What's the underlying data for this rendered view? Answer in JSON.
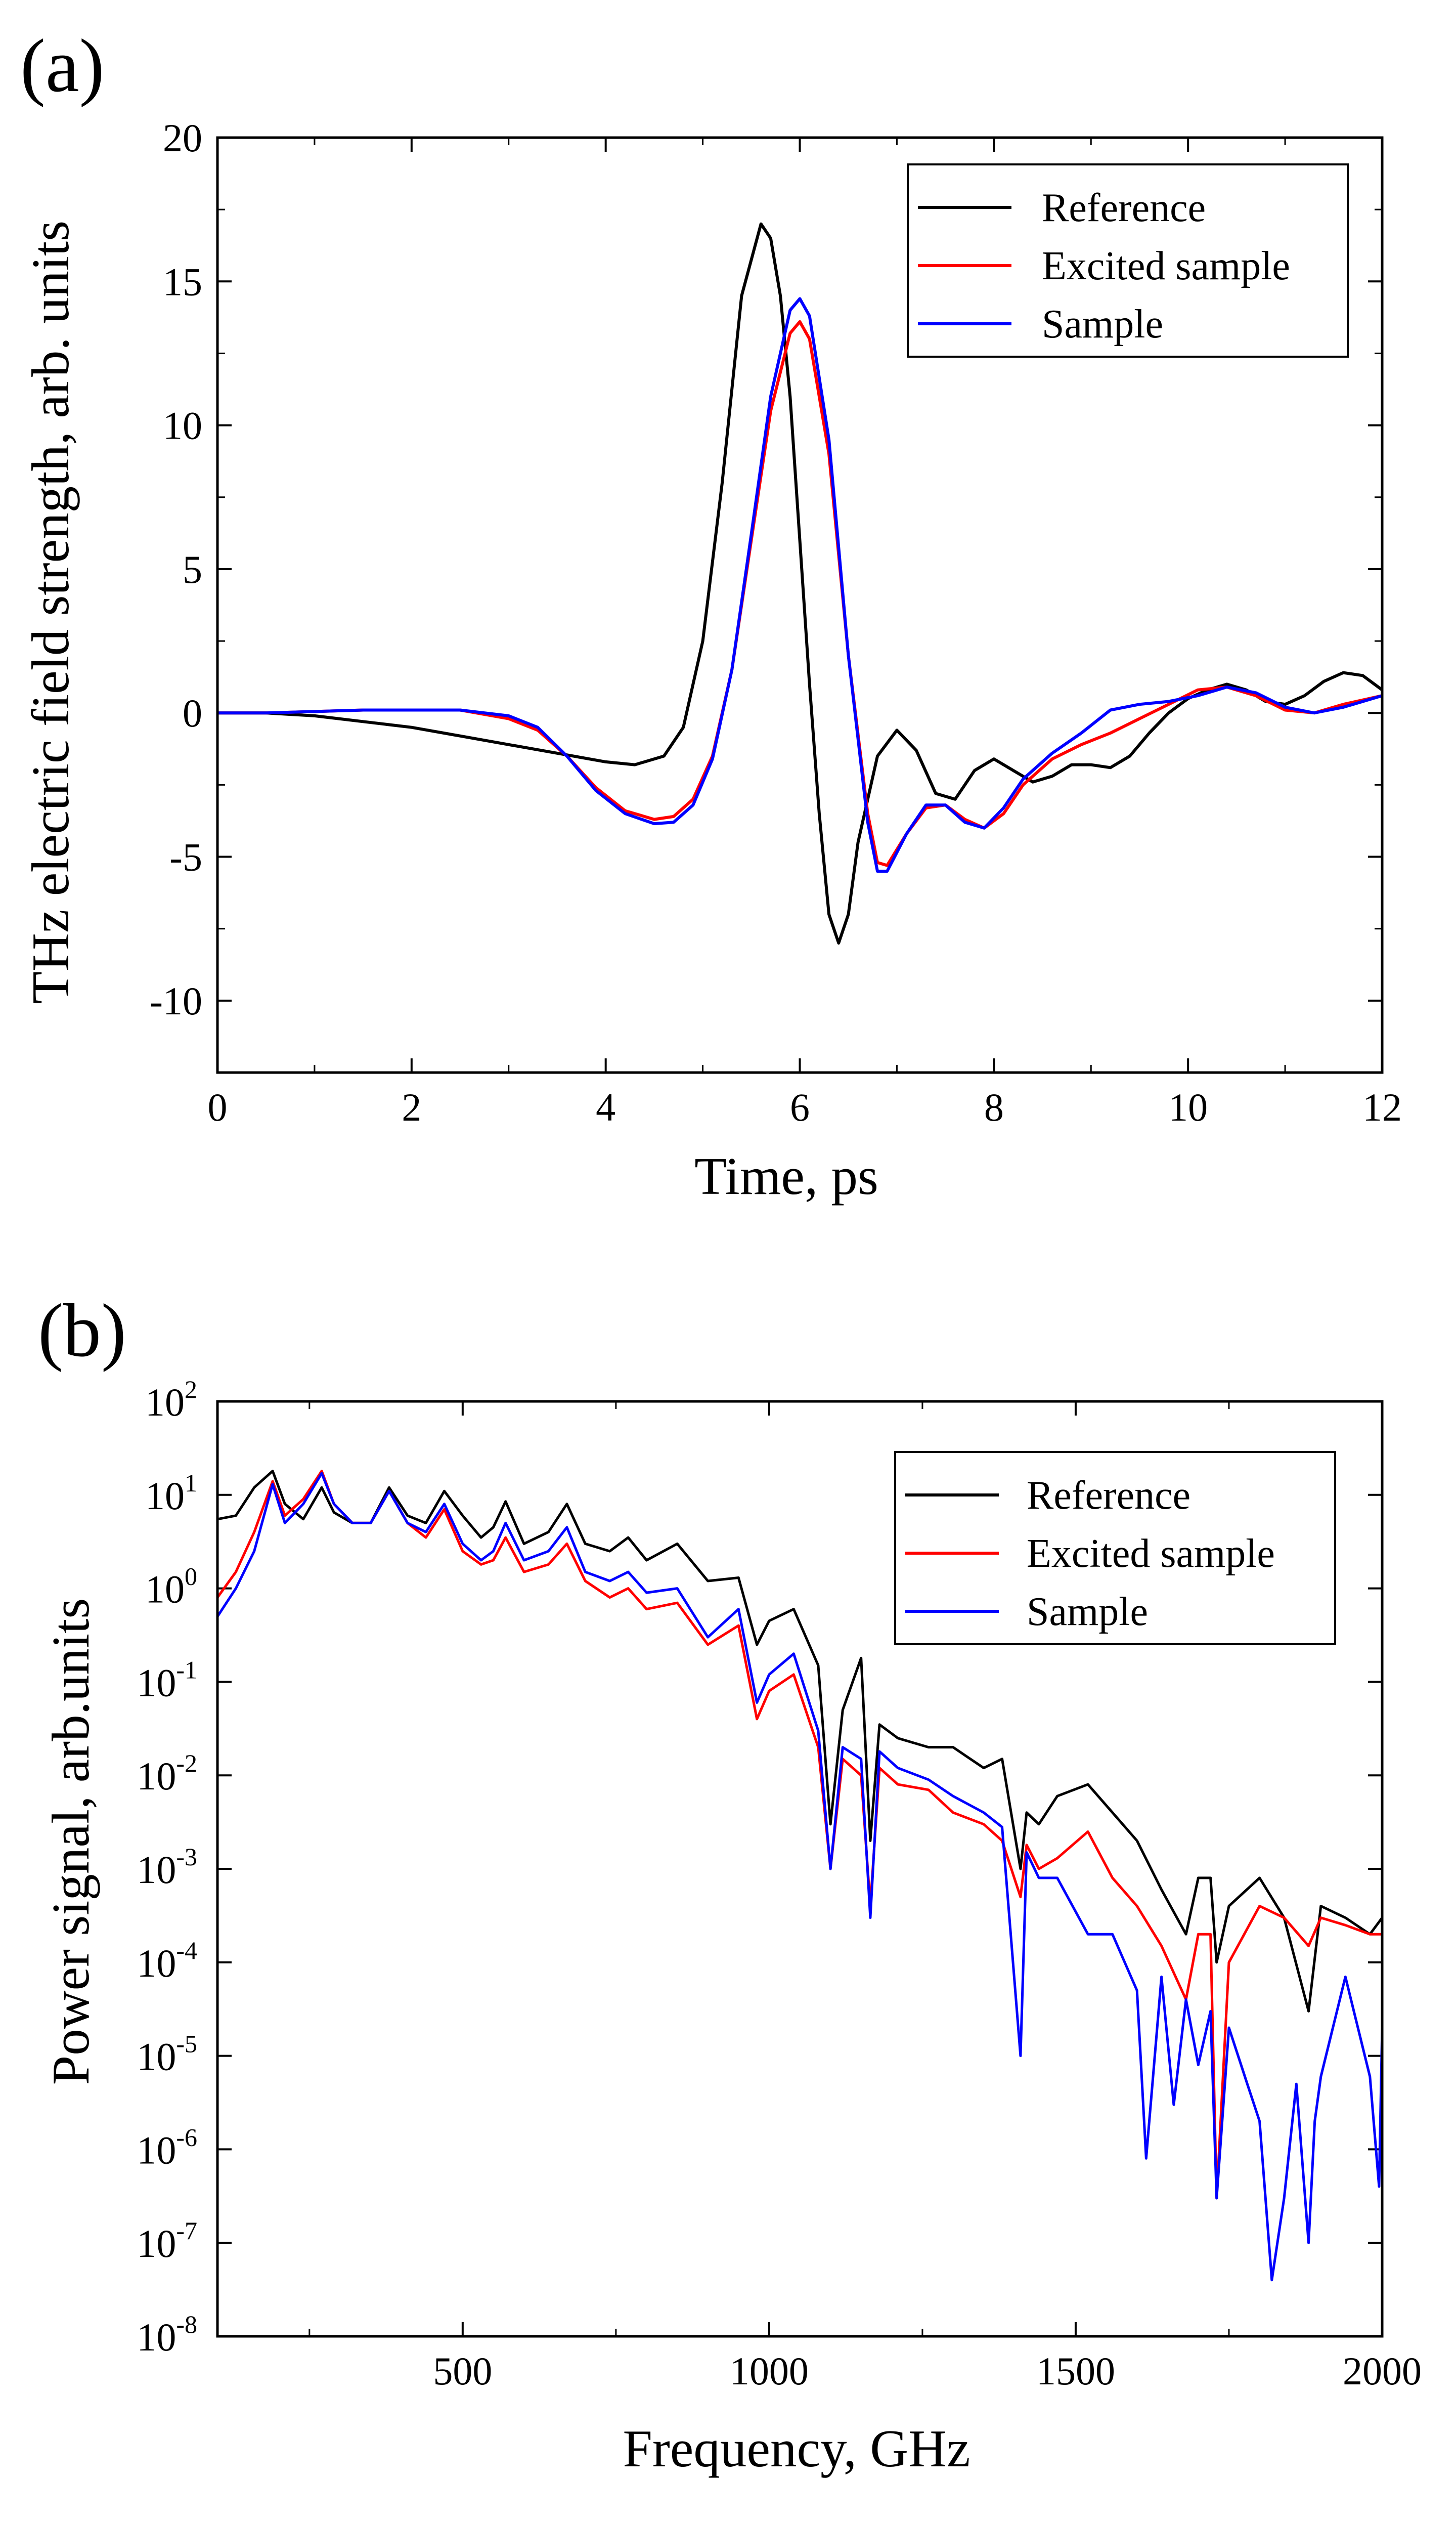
{
  "chart_data": [
    {
      "panel": "(a)",
      "type": "line",
      "xlabel": "Time, ps",
      "ylabel": "THz electric field strength, arb. units",
      "xlim": [
        0,
        12
      ],
      "ylim": [
        -12.5,
        20
      ],
      "xticks": [
        0,
        2,
        4,
        6,
        8,
        10,
        12
      ],
      "yticks": [
        -10,
        -5,
        0,
        5,
        10,
        15,
        20
      ],
      "xtick_labels": [
        "0",
        "2",
        "4",
        "6",
        "8",
        "10",
        "12"
      ],
      "ytick_labels": [
        "-10",
        "-5",
        "0",
        "5",
        "10",
        "15",
        "20"
      ],
      "legend": [
        "Reference",
        "Excited sample",
        "Sample"
      ],
      "legend_position": "top-right",
      "series": [
        {
          "name": "Reference",
          "color": "#000000",
          "x": [
            0,
            0.5,
            1,
            1.5,
            2,
            2.5,
            3,
            3.5,
            4,
            4.3,
            4.6,
            4.8,
            5.0,
            5.2,
            5.4,
            5.6,
            5.7,
            5.8,
            5.9,
            6.0,
            6.1,
            6.2,
            6.3,
            6.4,
            6.5,
            6.6,
            6.8,
            7.0,
            7.2,
            7.4,
            7.6,
            7.8,
            8.0,
            8.2,
            8.4,
            8.6,
            8.8,
            9.0,
            9.2,
            9.4,
            9.6,
            9.8,
            10.0,
            10.2,
            10.4,
            10.6,
            10.8,
            11.0,
            11.2,
            11.4,
            11.6,
            11.8,
            12.0
          ],
          "y": [
            0,
            0,
            -0.1,
            -0.3,
            -0.5,
            -0.8,
            -1.1,
            -1.4,
            -1.7,
            -1.8,
            -1.5,
            -0.5,
            2.5,
            8.0,
            14.5,
            17.0,
            16.5,
            14.5,
            11.0,
            6.0,
            1.0,
            -3.5,
            -7.0,
            -8.0,
            -7.0,
            -4.5,
            -1.5,
            -0.6,
            -1.3,
            -2.8,
            -3.0,
            -2.0,
            -1.6,
            -2.0,
            -2.4,
            -2.2,
            -1.8,
            -1.8,
            -1.9,
            -1.5,
            -0.7,
            0.0,
            0.5,
            0.8,
            1.0,
            0.8,
            0.4,
            0.3,
            0.6,
            1.1,
            1.4,
            1.3,
            0.8
          ]
        },
        {
          "name": "Excited sample",
          "color": "#ff0000",
          "x": [
            0,
            0.5,
            1,
            1.5,
            2,
            2.5,
            3,
            3.3,
            3.6,
            3.9,
            4.2,
            4.5,
            4.7,
            4.9,
            5.1,
            5.3,
            5.5,
            5.7,
            5.9,
            6.0,
            6.1,
            6.3,
            6.5,
            6.7,
            6.8,
            6.9,
            7.1,
            7.3,
            7.5,
            7.7,
            7.9,
            8.1,
            8.3,
            8.6,
            8.9,
            9.2,
            9.5,
            9.8,
            10.1,
            10.4,
            10.7,
            11.0,
            11.3,
            11.6,
            12.0
          ],
          "y": [
            0,
            0,
            0.05,
            0.1,
            0.1,
            0.1,
            -0.2,
            -0.6,
            -1.5,
            -2.6,
            -3.4,
            -3.7,
            -3.6,
            -3.0,
            -1.5,
            1.5,
            6.0,
            10.5,
            13.2,
            13.6,
            13.0,
            9.0,
            2.0,
            -3.5,
            -5.2,
            -5.3,
            -4.2,
            -3.3,
            -3.2,
            -3.7,
            -4.0,
            -3.5,
            -2.5,
            -1.6,
            -1.1,
            -0.7,
            -0.2,
            0.3,
            0.8,
            0.9,
            0.6,
            0.1,
            0.0,
            0.3,
            0.6
          ]
        },
        {
          "name": "Sample",
          "color": "#0000ff",
          "x": [
            0,
            0.5,
            1,
            1.5,
            2,
            2.5,
            3,
            3.3,
            3.6,
            3.9,
            4.2,
            4.5,
            4.7,
            4.9,
            5.1,
            5.3,
            5.5,
            5.7,
            5.9,
            6.0,
            6.1,
            6.3,
            6.5,
            6.7,
            6.8,
            6.9,
            7.1,
            7.3,
            7.5,
            7.7,
            7.9,
            8.1,
            8.3,
            8.6,
            8.9,
            9.2,
            9.5,
            9.8,
            10.1,
            10.4,
            10.7,
            11.0,
            11.3,
            11.6,
            12.0
          ],
          "y": [
            0,
            0,
            0.05,
            0.1,
            0.1,
            0.1,
            -0.1,
            -0.5,
            -1.5,
            -2.7,
            -3.5,
            -3.85,
            -3.8,
            -3.2,
            -1.6,
            1.5,
            6.2,
            11.0,
            14.0,
            14.4,
            13.8,
            9.5,
            2.0,
            -3.8,
            -5.5,
            -5.5,
            -4.2,
            -3.2,
            -3.2,
            -3.8,
            -4.0,
            -3.3,
            -2.3,
            -1.4,
            -0.7,
            0.1,
            0.3,
            0.4,
            0.6,
            0.9,
            0.7,
            0.2,
            0.0,
            0.2,
            0.6
          ]
        }
      ]
    },
    {
      "panel": "(b)",
      "type": "line",
      "yscale": "log",
      "xlabel": "Frequency, GHz",
      "ylabel": "Power signal, arb.units",
      "xlim": [
        100,
        2000
      ],
      "ylim": [
        1e-08,
        100
      ],
      "xticks": [
        500,
        1000,
        1500,
        2000
      ],
      "xtick_labels": [
        "500",
        "1000",
        "1500",
        "2000"
      ],
      "ytick_exponents": [
        -8,
        -7,
        -6,
        -5,
        -4,
        -3,
        -2,
        -1,
        0,
        1,
        2
      ],
      "ytick_base": "10",
      "legend": [
        "Reference",
        "Excited sample",
        "Sample"
      ],
      "legend_position": "top-right",
      "series": [
        {
          "name": "Reference",
          "color": "#000000",
          "x": [
            100,
            130,
            160,
            190,
            210,
            240,
            270,
            290,
            320,
            350,
            380,
            410,
            440,
            470,
            500,
            530,
            550,
            570,
            600,
            640,
            670,
            700,
            740,
            770,
            800,
            850,
            900,
            950,
            980,
            1000,
            1040,
            1080,
            1100,
            1120,
            1150,
            1165,
            1180,
            1210,
            1260,
            1300,
            1350,
            1380,
            1410,
            1420,
            1440,
            1470,
            1520,
            1560,
            1600,
            1640,
            1680,
            1700,
            1720,
            1730,
            1750,
            1800,
            1840,
            1880,
            1900,
            1940,
            1980,
            2000
          ],
          "y": [
            5.5,
            6.0,
            12.0,
            18.0,
            8.0,
            5.5,
            12.0,
            6.5,
            5.0,
            5.0,
            12.0,
            6.0,
            5.0,
            11.0,
            6.0,
            3.5,
            4.5,
            8.5,
            3.0,
            4.0,
            8.0,
            3.0,
            2.5,
            3.5,
            2.0,
            3.0,
            1.2,
            1.3,
            0.25,
            0.45,
            0.6,
            0.15,
            0.003,
            0.05,
            0.18,
            0.002,
            0.035,
            0.025,
            0.02,
            0.02,
            0.012,
            0.015,
            0.001,
            0.004,
            0.003,
            0.006,
            0.008,
            0.004,
            0.002,
            0.0006,
            0.0002,
            0.0008,
            0.0008,
            0.0001,
            0.0004,
            0.0008,
            0.0003,
            3e-05,
            0.0004,
            0.0003,
            0.0002,
            0.0003
          ]
        },
        {
          "name": "Excited sample",
          "color": "#ff0000",
          "x": [
            100,
            130,
            160,
            190,
            210,
            240,
            270,
            290,
            320,
            350,
            380,
            410,
            440,
            470,
            500,
            530,
            550,
            570,
            600,
            640,
            670,
            700,
            740,
            770,
            800,
            850,
            900,
            950,
            980,
            1000,
            1040,
            1080,
            1100,
            1120,
            1150,
            1165,
            1180,
            1210,
            1260,
            1300,
            1350,
            1380,
            1410,
            1420,
            1440,
            1470,
            1520,
            1560,
            1600,
            1640,
            1680,
            1700,
            1720,
            1730,
            1750,
            1800,
            1840,
            1880,
            1900,
            1940,
            1980,
            2000
          ],
          "y": [
            0.8,
            1.5,
            4.0,
            14.0,
            6.0,
            9.0,
            18.0,
            8.0,
            5.0,
            5.0,
            11.0,
            5.0,
            3.5,
            7.0,
            2.5,
            1.8,
            2.0,
            3.5,
            1.5,
            1.8,
            3.0,
            1.2,
            0.8,
            1.0,
            0.6,
            0.7,
            0.25,
            0.4,
            0.04,
            0.08,
            0.12,
            0.02,
            0.001,
            0.015,
            0.01,
            0.0004,
            0.012,
            0.008,
            0.007,
            0.004,
            0.003,
            0.002,
            0.0005,
            0.0018,
            0.001,
            0.0013,
            0.0025,
            0.0008,
            0.0004,
            0.00015,
            4e-05,
            0.0002,
            0.0002,
            3e-07,
            0.0001,
            0.0004,
            0.0003,
            0.00015,
            0.0003,
            0.00025,
            0.0002,
            0.0002
          ]
        },
        {
          "name": "Sample",
          "color": "#0000ff",
          "x": [
            100,
            130,
            160,
            190,
            210,
            240,
            270,
            290,
            320,
            350,
            380,
            410,
            440,
            470,
            500,
            530,
            550,
            570,
            600,
            640,
            670,
            700,
            740,
            770,
            800,
            850,
            900,
            950,
            980,
            1000,
            1040,
            1080,
            1100,
            1120,
            1150,
            1165,
            1180,
            1210,
            1260,
            1300,
            1350,
            1380,
            1410,
            1420,
            1440,
            1470,
            1520,
            1560,
            1600,
            1615,
            1640,
            1660,
            1680,
            1700,
            1720,
            1730,
            1750,
            1780,
            1800,
            1820,
            1840,
            1860,
            1880,
            1890,
            1900,
            1940,
            1980,
            1995,
            2000
          ],
          "y": [
            0.5,
            1.0,
            2.5,
            13.0,
            5.0,
            8.0,
            17.0,
            8.0,
            5.0,
            5.0,
            11.0,
            5.0,
            4.0,
            8.0,
            3.0,
            2.0,
            2.5,
            5.0,
            2.0,
            2.5,
            4.5,
            1.5,
            1.2,
            1.5,
            0.9,
            1.0,
            0.3,
            0.6,
            0.06,
            0.12,
            0.2,
            0.03,
            0.001,
            0.02,
            0.015,
            0.0003,
            0.018,
            0.012,
            0.009,
            0.006,
            0.004,
            0.0028,
            1e-05,
            0.0015,
            0.0008,
            0.0008,
            0.0002,
            0.0002,
            5e-05,
            8e-07,
            7e-05,
            3e-06,
            4e-05,
            8e-06,
            3e-05,
            3e-07,
            2e-05,
            5e-06,
            2e-06,
            4e-08,
            3e-07,
            5e-06,
            1e-07,
            2e-06,
            6e-06,
            7e-05,
            6e-06,
            4e-07,
            2e-05
          ]
        }
      ]
    }
  ]
}
